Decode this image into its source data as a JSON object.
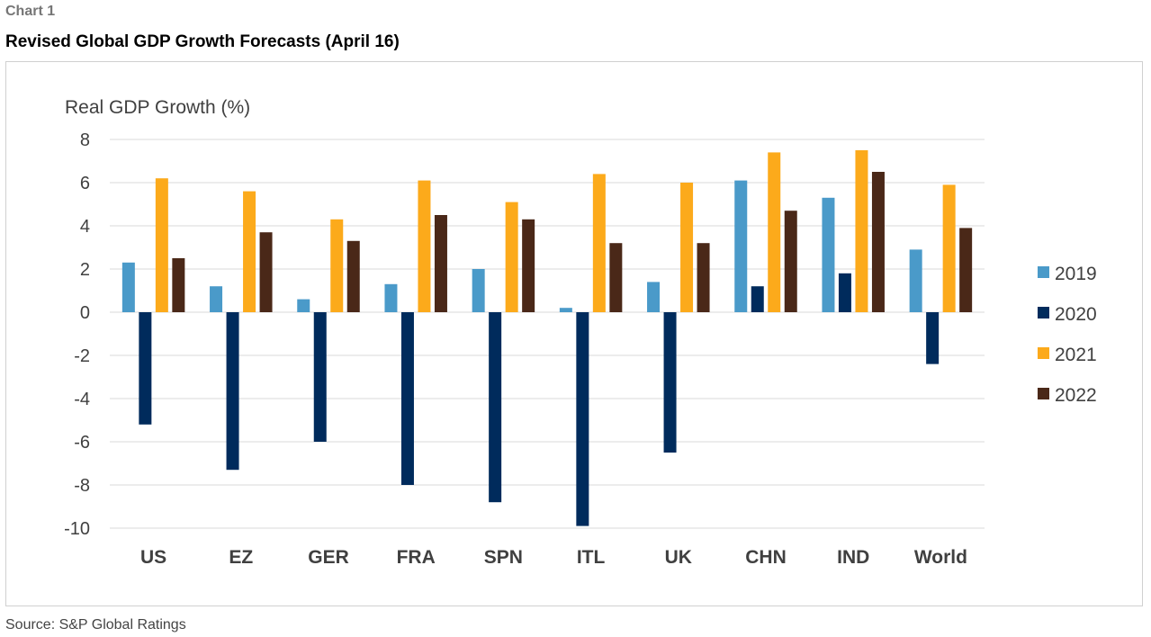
{
  "header": {
    "chart_label": "Chart 1",
    "title": "Revised Global GDP Growth Forecasts (April 16)"
  },
  "footer": {
    "source": "Source: S&P Global Ratings"
  },
  "chart_data": {
    "type": "bar",
    "ylabel": "Real GDP Growth (%)",
    "xlabel": "",
    "ylim": [
      -10,
      8
    ],
    "yticks": [
      8,
      6,
      4,
      2,
      0,
      -2,
      -4,
      -6,
      -8,
      -10
    ],
    "grid": true,
    "legend_position": "right",
    "categories": [
      "US",
      "EZ",
      "GER",
      "FRA",
      "SPN",
      "ITL",
      "UK",
      "CHN",
      "IND",
      "World"
    ],
    "series": [
      {
        "name": "2019",
        "color": "#4a9ac9",
        "values": [
          2.3,
          1.2,
          0.6,
          1.3,
          2.0,
          0.2,
          1.4,
          6.1,
          5.3,
          2.9
        ]
      },
      {
        "name": "2020",
        "color": "#002b5c",
        "values": [
          -5.2,
          -7.3,
          -6.0,
          -8.0,
          -8.8,
          -9.9,
          -6.5,
          1.2,
          1.8,
          -2.4
        ]
      },
      {
        "name": "2021",
        "color": "#fcaa1b",
        "values": [
          6.2,
          5.6,
          4.3,
          6.1,
          5.1,
          6.4,
          6.0,
          7.4,
          7.5,
          5.9
        ]
      },
      {
        "name": "2022",
        "color": "#4a2818",
        "values": [
          2.5,
          3.7,
          3.3,
          4.5,
          4.3,
          3.2,
          3.2,
          4.7,
          6.5,
          3.9
        ]
      }
    ]
  }
}
